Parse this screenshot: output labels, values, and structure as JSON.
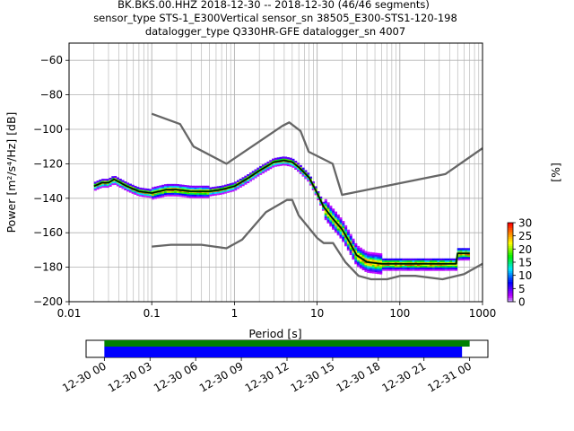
{
  "title_lines": [
    "BK.BKS.00.HHZ   2018-12-30 -- 2018-12-30  (46/46 segments)",
    "sensor_type STS-1_E300Vertical sensor_sn 38505_E300-STS1-120-198",
    "datalogger_type Q330HR-GFE datalogger_sn 4007"
  ],
  "colorbar": {
    "label": "[%]",
    "ticks": [
      "30",
      "25",
      "20",
      "15",
      "10",
      "5",
      "0"
    ],
    "range": [
      0,
      30
    ]
  },
  "colors": {
    "mean_curve": "#000000",
    "mode_curve": "#00aa00",
    "noise_models": "#666666",
    "coverage_data": "#0000ff",
    "coverage_total": "#008000",
    "grid": "#b0b0b0"
  },
  "chart_data": {
    "type": "heatmap",
    "subtype": "probabilistic power spectral density",
    "xlabel": "Period [s]",
    "ylabel": "Power [m²/s⁴/Hz] [dB]",
    "x_scale": "log",
    "xlim": [
      0.01,
      1000
    ],
    "ylim": [
      -200,
      -50
    ],
    "x_ticks": [
      "0.01",
      "0.1",
      "1",
      "10",
      "100",
      "1000"
    ],
    "y_ticks": [
      "-60",
      "-80",
      "-100",
      "-120",
      "-140",
      "-160",
      "-180",
      "-200"
    ],
    "grid": true,
    "mean_curve": {
      "x": [
        0.02,
        0.025,
        0.03,
        0.035,
        0.05,
        0.07,
        0.1,
        0.15,
        0.2,
        0.3,
        0.5,
        0.7,
        1.0,
        1.5,
        2.0,
        3.0,
        4.0,
        5.0,
        6.0,
        8.0,
        10.0,
        12.0,
        15.0,
        20.0,
        25.0,
        30.0,
        40.0,
        60.0,
        100.0,
        200.0,
        400.0,
        480.0,
        500.0,
        700.0
      ],
      "y": [
        -133,
        -131,
        -131,
        -129,
        -133,
        -136,
        -137,
        -135,
        -135,
        -136,
        -136,
        -135,
        -133,
        -128,
        -124,
        -119,
        -118,
        -119,
        -122,
        -128,
        -137,
        -145,
        -151,
        -158,
        -166,
        -173,
        -177,
        -178,
        -178,
        -178,
        -178,
        -178,
        -172,
        -172
      ]
    },
    "low_noise_model": {
      "x": [
        0.1,
        0.17,
        0.4,
        0.8,
        1.24,
        2.4,
        4.3,
        5.0,
        6.0,
        10.0,
        12.0,
        15.6,
        21.9,
        31.6,
        45.0,
        70.0,
        101.0,
        154.0,
        328.0,
        600.0,
        1000.0
      ],
      "y": [
        -168,
        -167,
        -167,
        -169,
        -164,
        -148,
        -141,
        -141,
        -150,
        -163,
        -166,
        -166,
        -177,
        -185,
        -187,
        -187,
        -185,
        -185,
        -187,
        -184,
        -178
      ]
    },
    "high_noise_model": {
      "x": [
        0.1,
        0.22,
        0.32,
        0.8,
        3.8,
        4.6,
        6.3,
        7.9,
        15.4,
        20.0,
        354.8,
        1000.0
      ],
      "y": [
        -91,
        -97,
        -110,
        -120,
        -98,
        -96,
        -101,
        -113,
        -120,
        -138,
        -126,
        -111
      ]
    }
  },
  "coverage": {
    "x_ticks": [
      "12-30 00",
      "12-30 03",
      "12-30 06",
      "12-30 09",
      "12-30 12",
      "12-30 15",
      "12-30 18",
      "12-30 21",
      "12-31 00"
    ],
    "data_segment_hours": [
      0,
      23.5
    ],
    "total_segment_hours": [
      0,
      24
    ],
    "xlim_hours": [
      -1.2,
      25.2
    ]
  }
}
